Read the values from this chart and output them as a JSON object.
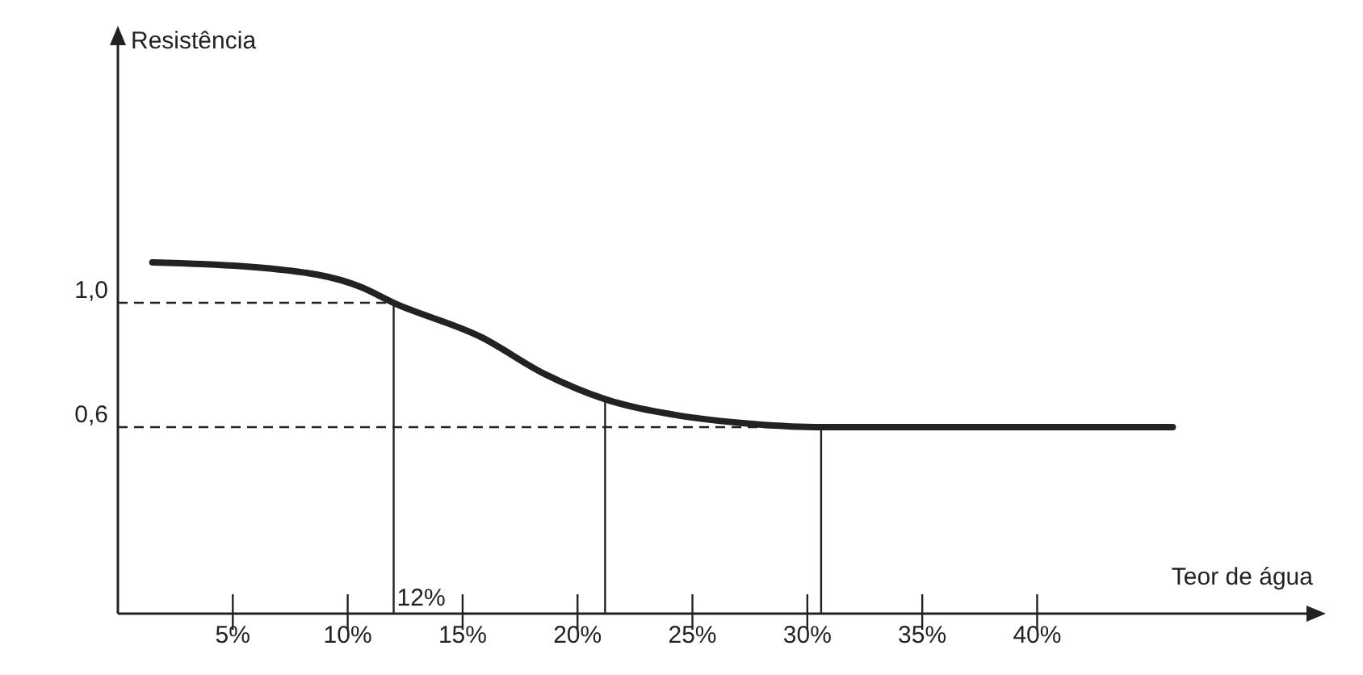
{
  "chart_data": {
    "type": "line",
    "xlabel": "Teor de água",
    "ylabel": "Resistência",
    "x": [
      1.5,
      6.7,
      10.6,
      12,
      15.8,
      18.6,
      21.2,
      24.2,
      27.7,
      30.6,
      45.9
    ],
    "series": [
      {
        "color": "#222222",
        "values": [
          1.13,
          1.11,
          1.05,
          1.0,
          0.89,
          0.77,
          0.69,
          0.64,
          0.61,
          0.6,
          0.6
        ]
      }
    ],
    "xlim": [
      0,
      52
    ],
    "ylim": [
      0,
      1.86
    ],
    "xticks": [
      {
        "value": 5,
        "label": "5%"
      },
      {
        "value": 10,
        "label": "10%"
      },
      {
        "value": 15,
        "label": "15%"
      },
      {
        "value": 20,
        "label": "20%"
      },
      {
        "value": 25,
        "label": "25%"
      },
      {
        "value": 30,
        "label": "30%"
      },
      {
        "value": 35,
        "label": "35%"
      },
      {
        "value": 40,
        "label": "40%"
      }
    ],
    "yticks": [
      {
        "value": 0.6,
        "label": "0,6"
      },
      {
        "value": 1.0,
        "label": "1,0"
      }
    ],
    "ref_lines": [
      {
        "axis": "y",
        "value": 1.0,
        "line_style": "dashed"
      },
      {
        "axis": "y",
        "value": 0.6,
        "line_style": "dashed"
      },
      {
        "axis": "x",
        "value": 12,
        "label": "12%",
        "line_style": "solid"
      },
      {
        "axis": "x",
        "value": 21.2,
        "line_style": "solid"
      },
      {
        "axis": "x",
        "value": 30.6,
        "line_style": "solid"
      }
    ],
    "grid": false,
    "marker": "none",
    "line_style": "solid"
  }
}
